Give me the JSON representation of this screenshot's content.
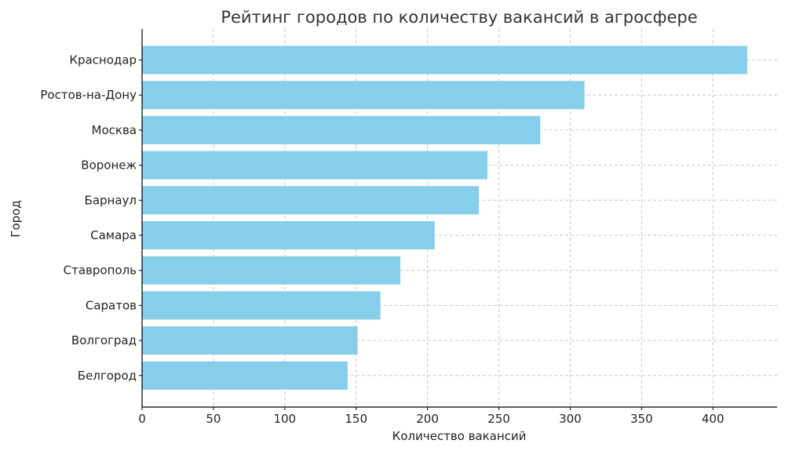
{
  "chart_data": {
    "type": "bar",
    "orientation": "horizontal",
    "title": "Рейтинг городов по количеству вакансий в агросфере",
    "xlabel": "Количество вакансий",
    "ylabel": "Город",
    "categories": [
      "Краснодар",
      "Ростов-на-Дону",
      "Москва",
      "Воронеж",
      "Барнаул",
      "Самара",
      "Ставрополь",
      "Саратов",
      "Волгоград",
      "Белгород"
    ],
    "values": [
      424,
      310,
      279,
      242,
      236,
      205,
      181,
      167,
      151,
      144
    ],
    "xticks": [
      0,
      50,
      100,
      150,
      200,
      250,
      300,
      350,
      400
    ],
    "xlim": [
      0,
      445
    ],
    "grid": true,
    "bar_color": "#87ceeb"
  }
}
